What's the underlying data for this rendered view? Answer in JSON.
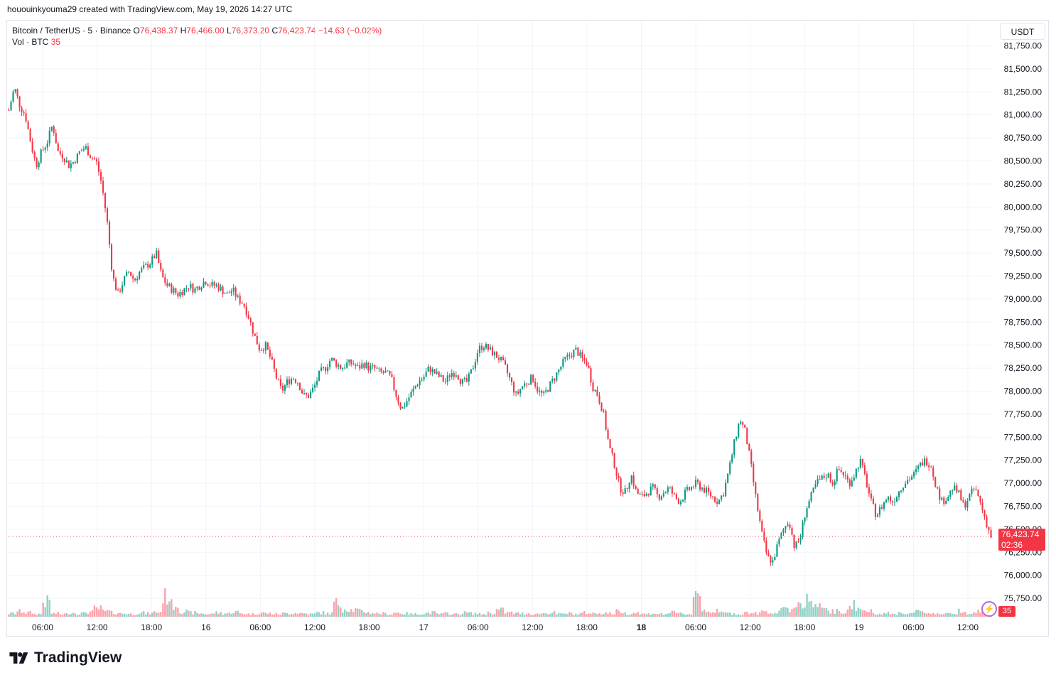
{
  "header": {
    "credit": "hououinkyouma29 created with TradingView.com, May 19, 2026 14:27 UTC"
  },
  "legend": {
    "symbol": "Bitcoin / TetherUS · 5 · Binance",
    "open_label": "O",
    "open_value": "76,438.37",
    "high_label": "H",
    "high_value": "76,466.00",
    "low_label": "L",
    "low_value": "76,373.20",
    "close_label": "C",
    "close_value": "76,423.74",
    "change": "−14.63 (−0.02%)",
    "vol_label": "Vol · BTC",
    "vol_value": "35"
  },
  "currency_button": "USDT",
  "last_price": {
    "value": "76,423.74",
    "countdown": "02:36"
  },
  "volume_badge": "35",
  "brand": "TradingView",
  "colors": {
    "up": "#089981",
    "down": "#f23645",
    "grid": "#f0f3fa",
    "text": "#131722"
  },
  "chart_data": {
    "type": "candlestick",
    "symbol": "Bitcoin / TetherUS",
    "interval": "5",
    "exchange": "Binance",
    "y_ticks": [
      "81,750.00",
      "81,500.00",
      "81,250.00",
      "81,000.00",
      "80,750.00",
      "80,500.00",
      "80,250.00",
      "80,000.00",
      "79,750.00",
      "79,500.00",
      "79,250.00",
      "79,000.00",
      "78,750.00",
      "78,500.00",
      "78,250.00",
      "78,000.00",
      "77,750.00",
      "77,500.00",
      "77,250.00",
      "77,000.00",
      "76,750.00",
      "76,500.00",
      "76,250.00",
      "76,000.00",
      "75,750.00"
    ],
    "y_range": [
      75550,
      81800
    ],
    "x_ticks": [
      {
        "label": "06:00",
        "bold": false
      },
      {
        "label": "12:00",
        "bold": false
      },
      {
        "label": "18:00",
        "bold": false
      },
      {
        "label": "16",
        "bold": false
      },
      {
        "label": "06:00",
        "bold": false
      },
      {
        "label": "12:00",
        "bold": false
      },
      {
        "label": "18:00",
        "bold": false
      },
      {
        "label": "17",
        "bold": false
      },
      {
        "label": "06:00",
        "bold": false
      },
      {
        "label": "12:00",
        "bold": false
      },
      {
        "label": "18:00",
        "bold": false
      },
      {
        "label": "18",
        "bold": true
      },
      {
        "label": "06:00",
        "bold": false
      },
      {
        "label": "12:00",
        "bold": false
      },
      {
        "label": "18:00",
        "bold": false
      },
      {
        "label": "19",
        "bold": false
      },
      {
        "label": "06:00",
        "bold": false
      },
      {
        "label": "12:00",
        "bold": false
      }
    ],
    "price_path": [
      [
        0,
        81050
      ],
      [
        2,
        81300
      ],
      [
        4,
        81100
      ],
      [
        6,
        81000
      ],
      [
        8,
        80700
      ],
      [
        10,
        80450
      ],
      [
        12,
        80600
      ],
      [
        14,
        80700
      ],
      [
        16,
        80900
      ],
      [
        18,
        80600
      ],
      [
        20,
        80550
      ],
      [
        22,
        80450
      ],
      [
        24,
        80500
      ],
      [
        26,
        80600
      ],
      [
        28,
        80650
      ],
      [
        30,
        80550
      ],
      [
        32,
        80500
      ],
      [
        34,
        80250
      ],
      [
        36,
        79850
      ],
      [
        38,
        79250
      ],
      [
        40,
        79050
      ],
      [
        42,
        79200
      ],
      [
        44,
        79300
      ],
      [
        46,
        79200
      ],
      [
        48,
        79300
      ],
      [
        50,
        79350
      ],
      [
        52,
        79400
      ],
      [
        54,
        79500
      ],
      [
        56,
        79250
      ],
      [
        58,
        79150
      ],
      [
        60,
        79100
      ],
      [
        62,
        79050
      ],
      [
        64,
        79100
      ],
      [
        66,
        79150
      ],
      [
        68,
        79100
      ],
      [
        70,
        79150
      ],
      [
        72,
        79200
      ],
      [
        74,
        79150
      ],
      [
        76,
        79150
      ],
      [
        78,
        79100
      ],
      [
        80,
        79050
      ],
      [
        82,
        79100
      ],
      [
        84,
        79000
      ],
      [
        86,
        78950
      ],
      [
        88,
        78800
      ],
      [
        90,
        78600
      ],
      [
        92,
        78450
      ],
      [
        94,
        78500
      ],
      [
        96,
        78350
      ],
      [
        98,
        78150
      ],
      [
        100,
        78000
      ],
      [
        102,
        78100
      ],
      [
        104,
        78150
      ],
      [
        106,
        78100
      ],
      [
        108,
        77950
      ],
      [
        110,
        77950
      ],
      [
        112,
        78050
      ],
      [
        114,
        78200
      ],
      [
        116,
        78250
      ],
      [
        118,
        78350
      ],
      [
        120,
        78300
      ],
      [
        122,
        78250
      ],
      [
        124,
        78300
      ],
      [
        126,
        78300
      ],
      [
        128,
        78250
      ],
      [
        130,
        78300
      ],
      [
        132,
        78250
      ],
      [
        134,
        78250
      ],
      [
        136,
        78200
      ],
      [
        138,
        78200
      ],
      [
        140,
        78150
      ],
      [
        142,
        77950
      ],
      [
        144,
        77800
      ],
      [
        146,
        77900
      ],
      [
        148,
        78000
      ],
      [
        150,
        78100
      ],
      [
        152,
        78150
      ],
      [
        154,
        78250
      ],
      [
        156,
        78200
      ],
      [
        158,
        78150
      ],
      [
        160,
        78100
      ],
      [
        162,
        78200
      ],
      [
        164,
        78200
      ],
      [
        166,
        78100
      ],
      [
        168,
        78100
      ],
      [
        170,
        78250
      ],
      [
        172,
        78450
      ],
      [
        174,
        78500
      ],
      [
        176,
        78450
      ],
      [
        178,
        78400
      ],
      [
        180,
        78350
      ],
      [
        182,
        78250
      ],
      [
        184,
        78100
      ],
      [
        186,
        77950
      ],
      [
        188,
        78050
      ],
      [
        190,
        78100
      ],
      [
        192,
        78150
      ],
      [
        194,
        78000
      ],
      [
        196,
        77950
      ],
      [
        198,
        78050
      ],
      [
        200,
        78150
      ],
      [
        202,
        78250
      ],
      [
        204,
        78350
      ],
      [
        206,
        78400
      ],
      [
        208,
        78450
      ],
      [
        210,
        78350
      ],
      [
        212,
        78300
      ],
      [
        214,
        78050
      ],
      [
        216,
        77950
      ],
      [
        218,
        77750
      ],
      [
        220,
        77400
      ],
      [
        222,
        77200
      ],
      [
        224,
        76950
      ],
      [
        226,
        76900
      ],
      [
        228,
        77100
      ],
      [
        230,
        76900
      ],
      [
        232,
        76850
      ],
      [
        234,
        76900
      ],
      [
        236,
        76950
      ],
      [
        238,
        76850
      ],
      [
        240,
        76900
      ],
      [
        242,
        76950
      ],
      [
        244,
        76850
      ],
      [
        246,
        76800
      ],
      [
        248,
        76900
      ],
      [
        250,
        76950
      ],
      [
        252,
        77000
      ],
      [
        254,
        76950
      ],
      [
        256,
        76900
      ],
      [
        258,
        76850
      ],
      [
        260,
        76800
      ],
      [
        262,
        76900
      ],
      [
        264,
        77150
      ],
      [
        266,
        77450
      ],
      [
        268,
        77700
      ],
      [
        270,
        77550
      ],
      [
        272,
        77200
      ],
      [
        274,
        76800
      ],
      [
        276,
        76450
      ],
      [
        278,
        76200
      ],
      [
        280,
        76150
      ],
      [
        282,
        76350
      ],
      [
        284,
        76500
      ],
      [
        286,
        76600
      ],
      [
        288,
        76300
      ],
      [
        290,
        76400
      ],
      [
        292,
        76700
      ],
      [
        294,
        76850
      ],
      [
        296,
        77000
      ],
      [
        298,
        77050
      ],
      [
        300,
        77100
      ],
      [
        302,
        77000
      ],
      [
        304,
        77150
      ],
      [
        306,
        77100
      ],
      [
        308,
        77000
      ],
      [
        310,
        77100
      ],
      [
        312,
        77250
      ],
      [
        314,
        77050
      ],
      [
        316,
        76800
      ],
      [
        318,
        76650
      ],
      [
        320,
        76750
      ],
      [
        322,
        76850
      ],
      [
        324,
        76800
      ],
      [
        326,
        76900
      ],
      [
        328,
        77000
      ],
      [
        330,
        77050
      ],
      [
        332,
        77100
      ],
      [
        334,
        77200
      ],
      [
        336,
        77250
      ],
      [
        338,
        77200
      ],
      [
        340,
        76950
      ],
      [
        342,
        76800
      ],
      [
        344,
        76850
      ],
      [
        346,
        76950
      ],
      [
        348,
        76900
      ],
      [
        350,
        76750
      ],
      [
        352,
        76850
      ],
      [
        354,
        76950
      ],
      [
        356,
        76800
      ],
      [
        358,
        76600
      ],
      [
        360,
        76420
      ]
    ],
    "volume_profile": [
      5,
      8,
      6,
      4,
      22,
      5,
      4,
      6,
      5,
      7,
      12,
      8,
      6,
      5,
      4,
      6,
      5,
      7,
      30,
      18,
      8,
      6,
      5,
      4,
      6,
      5,
      7,
      5,
      4,
      6,
      5,
      4,
      5,
      6,
      5,
      4,
      6,
      5,
      20,
      12,
      10,
      8,
      6,
      5,
      4,
      6,
      5,
      4,
      5,
      6,
      4,
      5,
      4,
      6,
      5,
      4,
      6,
      10,
      6,
      5,
      5,
      4,
      5,
      6,
      4,
      5,
      4,
      6,
      5,
      6,
      5,
      8,
      5,
      6,
      4,
      5,
      4,
      6,
      5,
      4,
      35,
      10,
      8,
      6,
      5,
      4,
      6,
      5,
      8,
      6,
      10,
      12,
      20,
      25,
      15,
      10,
      8,
      6,
      18,
      12,
      8,
      6,
      5,
      4,
      6,
      5,
      8,
      6,
      5,
      4,
      6,
      10,
      5,
      8,
      14,
      6
    ]
  }
}
